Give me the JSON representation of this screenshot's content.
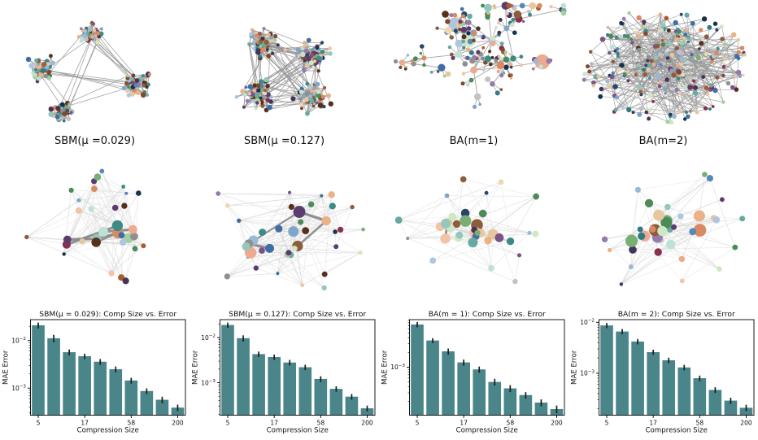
{
  "page": {
    "background": "#ffffff",
    "kind": "paper-figure"
  },
  "palette": {
    "node_colors": [
      "#3e6fa3",
      "#274668",
      "#16324f",
      "#7fa5cb",
      "#aec7e0",
      "#5588bb",
      "#99b9d6",
      "#2f7b84",
      "#3d8b84",
      "#67aaa1",
      "#93c7bb",
      "#bfe0d5",
      "#4c8a57",
      "#79ae74",
      "#a4cf9e",
      "#cfe8c3",
      "#e6c79e",
      "#f0d7b2",
      "#eab287",
      "#f3c3a6",
      "#edaa90",
      "#da8a62",
      "#a85a31",
      "#82462a",
      "#57301b",
      "#8c5c3c",
      "#7b5386",
      "#5a3d6e",
      "#947bab",
      "#46335a",
      "#8f8f8f",
      "#c2c2c2",
      "#88304e"
    ],
    "edge_color": "#949494",
    "faint_edge_color": "#e4e4e4",
    "medium_edge_color": "#d4d4d4",
    "dark_edge_color": "#858585",
    "bar_color": "#4a8589",
    "error_color": "#1c1c1c",
    "axis_color": "#000000",
    "text_color": "#111111"
  },
  "networks_top": [
    {
      "title": "SBM(μ =0.029)",
      "kind": "sbm",
      "seed": 11,
      "nodes": 208,
      "clusters": [
        [
          113,
          40,
          15
        ],
        [
          50,
          82,
          16
        ],
        [
          76,
          134,
          14
        ],
        [
          168,
          102,
          17
        ]
      ],
      "inter_edges": 32,
      "intra_k": 2.4
    },
    {
      "title": "SBM(μ =0.127)",
      "kind": "sbm",
      "seed": 22,
      "nodes": 224,
      "clusters": [
        [
          92,
          52,
          21
        ],
        [
          150,
          68,
          21
        ],
        [
          82,
          114,
          21
        ],
        [
          152,
          118,
          21
        ]
      ],
      "inter_edges": 95,
      "intra_k": 2.1
    },
    {
      "title": "BA(m=1)",
      "kind": "tree",
      "seed": 33,
      "hubs": 34,
      "leaves_min": 2,
      "leaves_max": 6
    },
    {
      "title": "BA(m=2)",
      "kind": "hairball",
      "seed": 44,
      "nodes": 235,
      "edges": 340
    }
  ],
  "networks_mid": [
    {
      "kind": "comp",
      "seed": 55,
      "nodes": 33,
      "dark_edges": 7,
      "spread": 0.95,
      "spoke": false
    },
    {
      "kind": "comp",
      "seed": 66,
      "nodes": 40,
      "dark_edges": 6,
      "spread": 1.05,
      "spoke": false
    },
    {
      "kind": "comp",
      "seed": 77,
      "nodes": 36,
      "dark_edges": 2,
      "spread": 1.0,
      "spoke": true
    },
    {
      "kind": "comp",
      "seed": 88,
      "nodes": 38,
      "dark_edges": 1,
      "spread": 1.05,
      "spoke": true
    }
  ],
  "chart_data": [
    {
      "type": "bar",
      "yscale": "log",
      "title": "SBM(μ = 0.029): Comp Size vs. Error",
      "xlabel": "Compression Size",
      "ylabel": "MAE Error",
      "categories": [
        5,
        8,
        12,
        17,
        26,
        38,
        58,
        88,
        132,
        200
      ],
      "xtick_labels": [
        "5",
        "17",
        "58",
        "200"
      ],
      "xtick_positions": [
        0,
        3,
        6,
        9
      ],
      "values": [
        0.021,
        0.0112,
        0.0057,
        0.0047,
        0.0036,
        0.0025,
        0.00145,
        0.00087,
        0.00057,
        0.00039
      ],
      "errors": [
        0.003,
        0.002,
        0.0008,
        0.0006,
        0.0005,
        0.00035,
        0.0002,
        0.00012,
        9e-05,
        6e-05
      ],
      "ylim": [
        0.00027,
        0.0276
      ],
      "grid": false,
      "legend": null
    },
    {
      "type": "bar",
      "yscale": "log",
      "title": "SBM(μ = 0.127): Comp Size vs. Error",
      "xlabel": "Compression Size",
      "ylabel": "MAE Error",
      "categories": [
        5,
        8,
        12,
        17,
        26,
        38,
        58,
        88,
        132,
        200
      ],
      "xtick_labels": [
        "5",
        "17",
        "58",
        "200"
      ],
      "xtick_positions": [
        0,
        3,
        6,
        9
      ],
      "values": [
        0.019,
        0.0097,
        0.0043,
        0.0037,
        0.0028,
        0.0022,
        0.00121,
        0.00073,
        0.00049,
        0.00027
      ],
      "errors": [
        0.0025,
        0.0015,
        0.0006,
        0.0005,
        0.0004,
        0.0003,
        0.00018,
        0.0001,
        7e-05,
        4e-05
      ],
      "ylim": [
        0.00019,
        0.025
      ],
      "grid": false,
      "legend": null
    },
    {
      "type": "bar",
      "yscale": "log",
      "title": "BA(m = 1): Comp Size vs. Error",
      "xlabel": "Compression Size",
      "ylabel": "MAE Error",
      "categories": [
        5,
        8,
        12,
        17,
        26,
        38,
        58,
        88,
        132,
        200
      ],
      "xtick_labels": [
        "5",
        "17",
        "58",
        "200"
      ],
      "xtick_positions": [
        0,
        3,
        6,
        9
      ],
      "values": [
        0.0074,
        0.0035,
        0.0021,
        0.00125,
        0.0009,
        0.0005,
        0.00037,
        0.00027,
        0.00019,
        0.00014
      ],
      "errors": [
        0.0009,
        0.0004,
        0.0003,
        0.00018,
        0.00013,
        8e-05,
        6e-05,
        4e-05,
        3e-05,
        2.5e-05
      ],
      "ylim": [
        0.000105,
        0.0093
      ],
      "grid": false,
      "legend": null
    },
    {
      "type": "bar",
      "yscale": "log",
      "title": "BA(m = 2): Comp Size vs. Error",
      "xlabel": "Compression Size",
      "ylabel": "MAE Error",
      "categories": [
        5,
        8,
        12,
        17,
        26,
        38,
        58,
        88,
        132,
        200
      ],
      "xtick_labels": [
        "5",
        "17",
        "58",
        "200"
      ],
      "xtick_positions": [
        0,
        3,
        6,
        9
      ],
      "values": [
        0.0087,
        0.0066,
        0.0042,
        0.0026,
        0.0018,
        0.0013,
        0.0008,
        0.00047,
        0.00029,
        0.00021
      ],
      "errors": [
        0.001,
        0.0008,
        0.0005,
        0.0003,
        0.00022,
        0.00016,
        0.0001,
        6e-05,
        4e-05,
        3e-05
      ],
      "ylim": [
        0.00015,
        0.0113
      ],
      "grid": false,
      "legend": null
    }
  ]
}
